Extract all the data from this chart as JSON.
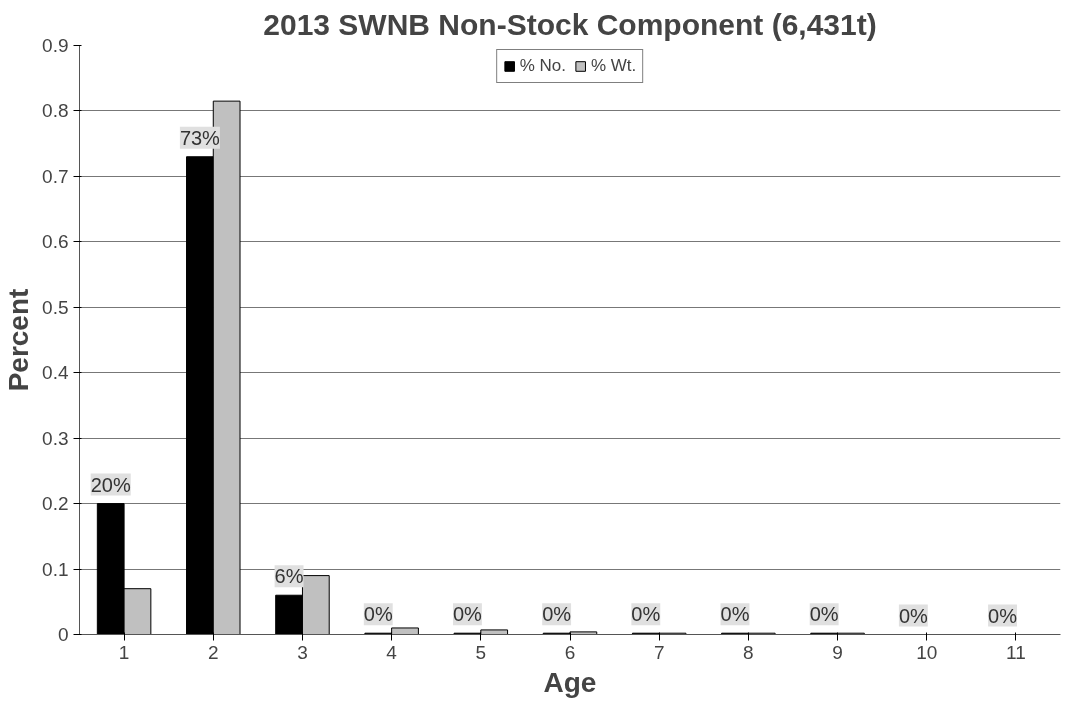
{
  "chart_data": {
    "type": "bar",
    "title": "2013 SWNB Non-Stock Component (6,431t)",
    "xlabel": "Age",
    "ylabel": "Percent",
    "categories": [
      "1",
      "2",
      "3",
      "4",
      "5",
      "6",
      "7",
      "8",
      "9",
      "10",
      "11"
    ],
    "series": [
      {
        "name": "% No.",
        "color": "#000000",
        "values": [
          0.2,
          0.73,
          0.06,
          0.002,
          0.002,
          0.002,
          0.002,
          0.002,
          0.002,
          0,
          0
        ],
        "value_labels": [
          "20%",
          "73%",
          "6%",
          "0%",
          "0%",
          "0%",
          "0%",
          "0%",
          "0%",
          "0%",
          "0%"
        ]
      },
      {
        "name": "% Wt.",
        "color": "#c0c0c0",
        "values": [
          0.07,
          0.815,
          0.09,
          0.01,
          0.007,
          0.004,
          0.002,
          0.002,
          0.002,
          0,
          0
        ]
      }
    ],
    "ylim": [
      0,
      0.9
    ],
    "yticks": [
      0,
      0.1,
      0.2,
      0.3,
      0.4,
      0.5,
      0.6,
      0.7,
      0.8,
      0.9
    ],
    "grid": "y",
    "legend": "top"
  }
}
